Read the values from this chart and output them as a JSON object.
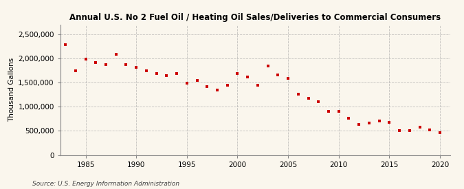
{
  "title": "Annual U.S. No 2 Fuel Oil / Heating Oil Sales/Deliveries to Commercial Consumers",
  "ylabel": "Thousand Gallons",
  "source": "Source: U.S. Energy Information Administration",
  "background_color": "#faf6ed",
  "marker_color": "#cc0000",
  "grid_color": "#aaaaaa",
  "years": [
    1983,
    1984,
    1985,
    1986,
    1987,
    1988,
    1989,
    1990,
    1991,
    1992,
    1993,
    1994,
    1995,
    1996,
    1997,
    1998,
    1999,
    2000,
    2001,
    2002,
    2003,
    2004,
    2005,
    2006,
    2007,
    2008,
    2009,
    2010,
    2011,
    2012,
    2013,
    2014,
    2015,
    2016,
    2017,
    2018,
    2019,
    2020
  ],
  "values": [
    2280000,
    1740000,
    1980000,
    1910000,
    1870000,
    2090000,
    1870000,
    1820000,
    1740000,
    1680000,
    1650000,
    1680000,
    1490000,
    1550000,
    1420000,
    1340000,
    1450000,
    1680000,
    1620000,
    1440000,
    1840000,
    1660000,
    1580000,
    1260000,
    1180000,
    1100000,
    900000,
    900000,
    760000,
    630000,
    660000,
    700000,
    670000,
    510000,
    510000,
    570000,
    520000,
    460000
  ],
  "ylim": [
    0,
    2700000
  ],
  "yticks": [
    0,
    500000,
    1000000,
    1500000,
    2000000,
    2500000
  ],
  "xlim": [
    1982.5,
    2021
  ],
  "xticks": [
    1985,
    1990,
    1995,
    2000,
    2005,
    2010,
    2015,
    2020
  ]
}
